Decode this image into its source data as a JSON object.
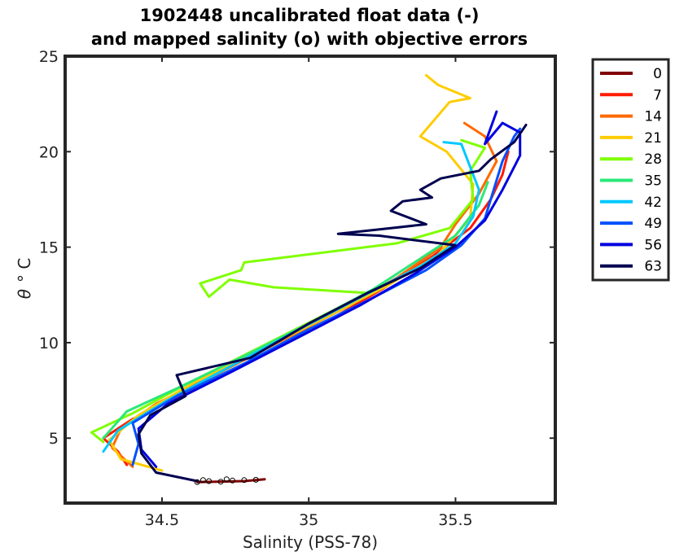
{
  "chart_data": {
    "type": "line",
    "title_line1": "1902448 uncalibrated float data (-)",
    "title_line2": "and mapped salinity (o) with objective errors",
    "xlabel": "Salinity (PSS-78)",
    "ylabel_symbol": "θ",
    "ylabel_unit": "° C",
    "xlim": [
      34.17,
      35.84
    ],
    "ylim": [
      1.6,
      25
    ],
    "xticks": [
      34.5,
      35,
      35.5
    ],
    "xtick_labels": [
      "34.5",
      "35",
      "35.5"
    ],
    "yticks": [
      5,
      10,
      15,
      20,
      25
    ],
    "ytick_labels": [
      "5",
      "10",
      "15",
      "20",
      "25"
    ],
    "grid": false,
    "legend_position": "outside-right",
    "legend": [
      {
        "label": "0",
        "color": "#800000"
      },
      {
        "label": "7",
        "color": "#ff1a00"
      },
      {
        "label": "14",
        "color": "#ff6a00"
      },
      {
        "label": "21",
        "color": "#ffcc00"
      },
      {
        "label": "28",
        "color": "#7fff00"
      },
      {
        "label": "35",
        "color": "#2ae878"
      },
      {
        "label": "42",
        "color": "#00c8ff"
      },
      {
        "label": "49",
        "color": "#0050ff"
      },
      {
        "label": "56",
        "color": "#0000e0"
      },
      {
        "label": "63",
        "color": "#000050"
      }
    ],
    "series": [
      {
        "color": "#800000",
        "points": [
          [
            34.62,
            2.7
          ],
          [
            34.78,
            2.75
          ],
          [
            34.85,
            2.85
          ]
        ]
      },
      {
        "color": "#ff1a00",
        "points": [
          [
            34.38,
            3.6
          ],
          [
            34.35,
            4.3
          ],
          [
            34.3,
            5.0
          ],
          [
            34.4,
            6.0
          ],
          [
            34.6,
            7.5
          ],
          [
            34.82,
            9.2
          ],
          [
            35.05,
            11.0
          ],
          [
            35.25,
            12.8
          ],
          [
            35.42,
            14.5
          ],
          [
            35.55,
            16.0
          ],
          [
            35.62,
            17.5
          ],
          [
            35.66,
            18.8
          ],
          [
            35.68,
            20.0
          ]
        ]
      },
      {
        "color": "#ff6a00",
        "points": [
          [
            34.4,
            3.5
          ],
          [
            34.33,
            4.5
          ],
          [
            34.36,
            5.5
          ],
          [
            34.48,
            6.8
          ],
          [
            34.68,
            8.3
          ],
          [
            34.92,
            10.2
          ],
          [
            35.12,
            11.8
          ],
          [
            35.3,
            13.4
          ],
          [
            35.45,
            15.0
          ],
          [
            35.5,
            16.2
          ],
          [
            35.58,
            17.8
          ],
          [
            35.64,
            19.5
          ],
          [
            35.6,
            20.8
          ],
          [
            35.53,
            21.5
          ]
        ]
      },
      {
        "color": "#ffcc00",
        "points": [
          [
            34.5,
            3.3
          ],
          [
            34.36,
            3.9
          ],
          [
            34.32,
            4.9
          ],
          [
            34.42,
            6.2
          ],
          [
            34.62,
            8.0
          ],
          [
            34.86,
            9.8
          ],
          [
            35.08,
            11.5
          ],
          [
            35.27,
            13.0
          ],
          [
            35.44,
            14.6
          ],
          [
            35.55,
            16.5
          ],
          [
            35.56,
            18.3
          ],
          [
            35.47,
            20.0
          ],
          [
            35.38,
            20.8
          ],
          [
            35.48,
            22.6
          ],
          [
            35.55,
            22.8
          ],
          [
            35.44,
            23.5
          ],
          [
            35.4,
            24.0
          ]
        ]
      },
      {
        "color": "#7fff00",
        "points": [
          [
            34.3,
            4.8
          ],
          [
            34.26,
            5.3
          ],
          [
            34.4,
            6.3
          ],
          [
            34.58,
            7.8
          ],
          [
            34.8,
            9.5
          ],
          [
            35.02,
            11.2
          ],
          [
            35.2,
            12.6
          ],
          [
            34.88,
            12.9
          ],
          [
            34.73,
            13.3
          ],
          [
            34.66,
            12.4
          ],
          [
            34.63,
            13.1
          ],
          [
            34.77,
            13.8
          ],
          [
            34.78,
            14.2
          ],
          [
            35.3,
            15.2
          ],
          [
            35.48,
            16.0
          ],
          [
            35.56,
            17.5
          ],
          [
            35.55,
            19.0
          ],
          [
            35.6,
            20.2
          ],
          [
            35.52,
            20.6
          ]
        ]
      },
      {
        "color": "#2ae878",
        "points": [
          [
            34.3,
            5.0
          ],
          [
            34.38,
            6.4
          ],
          [
            34.55,
            7.6
          ],
          [
            34.78,
            9.3
          ],
          [
            35.0,
            11.0
          ],
          [
            35.22,
            12.8
          ],
          [
            35.38,
            14.4
          ],
          [
            35.5,
            15.6
          ],
          [
            35.58,
            17.2
          ],
          [
            35.61,
            18.4
          ]
        ]
      },
      {
        "color": "#00c8ff",
        "points": [
          [
            34.3,
            4.3
          ],
          [
            34.35,
            5.4
          ],
          [
            34.52,
            7.0
          ],
          [
            34.75,
            8.9
          ],
          [
            34.98,
            10.8
          ],
          [
            35.18,
            12.4
          ],
          [
            35.38,
            14.0
          ],
          [
            35.5,
            15.2
          ],
          [
            35.56,
            16.6
          ],
          [
            35.58,
            18.0
          ],
          [
            35.52,
            20.4
          ],
          [
            35.46,
            20.5
          ]
        ]
      },
      {
        "color": "#0050ff",
        "points": [
          [
            34.4,
            3.6
          ],
          [
            34.42,
            4.7
          ],
          [
            34.4,
            5.8
          ],
          [
            34.55,
            7.2
          ],
          [
            34.78,
            8.9
          ],
          [
            35.0,
            10.7
          ],
          [
            35.2,
            12.2
          ],
          [
            35.4,
            13.8
          ],
          [
            35.52,
            15.1
          ],
          [
            35.6,
            16.5
          ],
          [
            35.63,
            18.0
          ],
          [
            35.66,
            19.5
          ],
          [
            35.7,
            20.8
          ],
          [
            35.72,
            21.2
          ]
        ]
      },
      {
        "color": "#0000e0",
        "points": [
          [
            34.48,
            3.5
          ],
          [
            34.43,
            4.4
          ],
          [
            34.42,
            5.5
          ],
          [
            34.52,
            6.8
          ],
          [
            34.74,
            8.5
          ],
          [
            34.98,
            10.4
          ],
          [
            35.18,
            12.0
          ],
          [
            35.36,
            13.6
          ],
          [
            35.5,
            15.0
          ],
          [
            35.6,
            16.4
          ],
          [
            35.66,
            18.0
          ],
          [
            35.72,
            19.8
          ],
          [
            35.72,
            21.0
          ],
          [
            35.66,
            21.5
          ],
          [
            35.6,
            20.4
          ],
          [
            35.64,
            22.1
          ]
        ]
      },
      {
        "color": "#000050",
        "points": [
          [
            34.62,
            2.75
          ],
          [
            34.48,
            3.2
          ],
          [
            34.43,
            4.2
          ],
          [
            34.42,
            5.2
          ],
          [
            34.46,
            6.2
          ],
          [
            34.58,
            7.2
          ],
          [
            34.55,
            8.3
          ],
          [
            34.8,
            9.2
          ],
          [
            35.0,
            11.0
          ],
          [
            35.2,
            12.6
          ],
          [
            35.38,
            13.9
          ],
          [
            35.5,
            15.1
          ],
          [
            35.24,
            15.6
          ],
          [
            35.1,
            15.7
          ],
          [
            35.28,
            16.0
          ],
          [
            35.4,
            16.2
          ],
          [
            35.28,
            16.9
          ],
          [
            35.32,
            17.4
          ],
          [
            35.42,
            17.6
          ],
          [
            35.38,
            18.0
          ],
          [
            35.45,
            18.6
          ],
          [
            35.58,
            19.0
          ],
          [
            35.62,
            19.6
          ],
          [
            35.7,
            20.5
          ],
          [
            35.74,
            21.4
          ]
        ]
      }
    ]
  }
}
